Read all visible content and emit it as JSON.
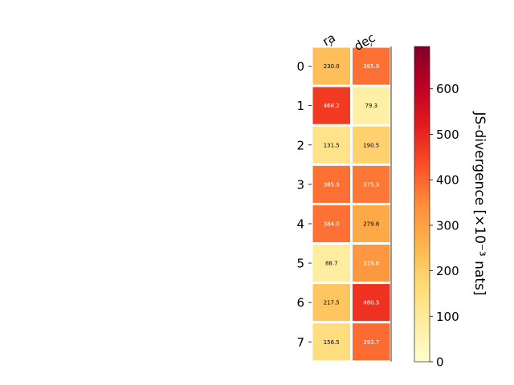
{
  "chart_data": {
    "type": "heatmap",
    "columns": [
      "ra",
      "dec"
    ],
    "rows": [
      "0",
      "1",
      "2",
      "3",
      "4",
      "5",
      "6",
      "7"
    ],
    "values": [
      [
        230.0,
        385.9
      ],
      [
        468.2,
        79.3
      ],
      [
        131.5,
        190.5
      ],
      [
        385.9,
        375.3
      ],
      [
        384.0,
        279.8
      ],
      [
        88.7,
        319.6
      ],
      [
        217.5,
        480.3
      ],
      [
        156.5,
        393.7
      ]
    ],
    "cell_labels": [
      [
        "230.0",
        "385.9"
      ],
      [
        "468.2",
        "79.3"
      ],
      [
        "131.5",
        "190.5"
      ],
      [
        "385.9",
        "375.3"
      ],
      [
        "384.0",
        "279.8"
      ],
      [
        "88.7",
        "319.6"
      ],
      [
        "217.5",
        "480.3"
      ],
      [
        "156.5",
        "393.7"
      ]
    ],
    "colorbar": {
      "label": "JS-divergence [×10⁻³ nats]",
      "ticks": [
        "0",
        "100",
        "200",
        "300",
        "400",
        "500",
        "600"
      ],
      "range": [
        0,
        693
      ],
      "colormap": "YlOrRd"
    },
    "title": "",
    "xlabel": "",
    "ylabel": ""
  }
}
